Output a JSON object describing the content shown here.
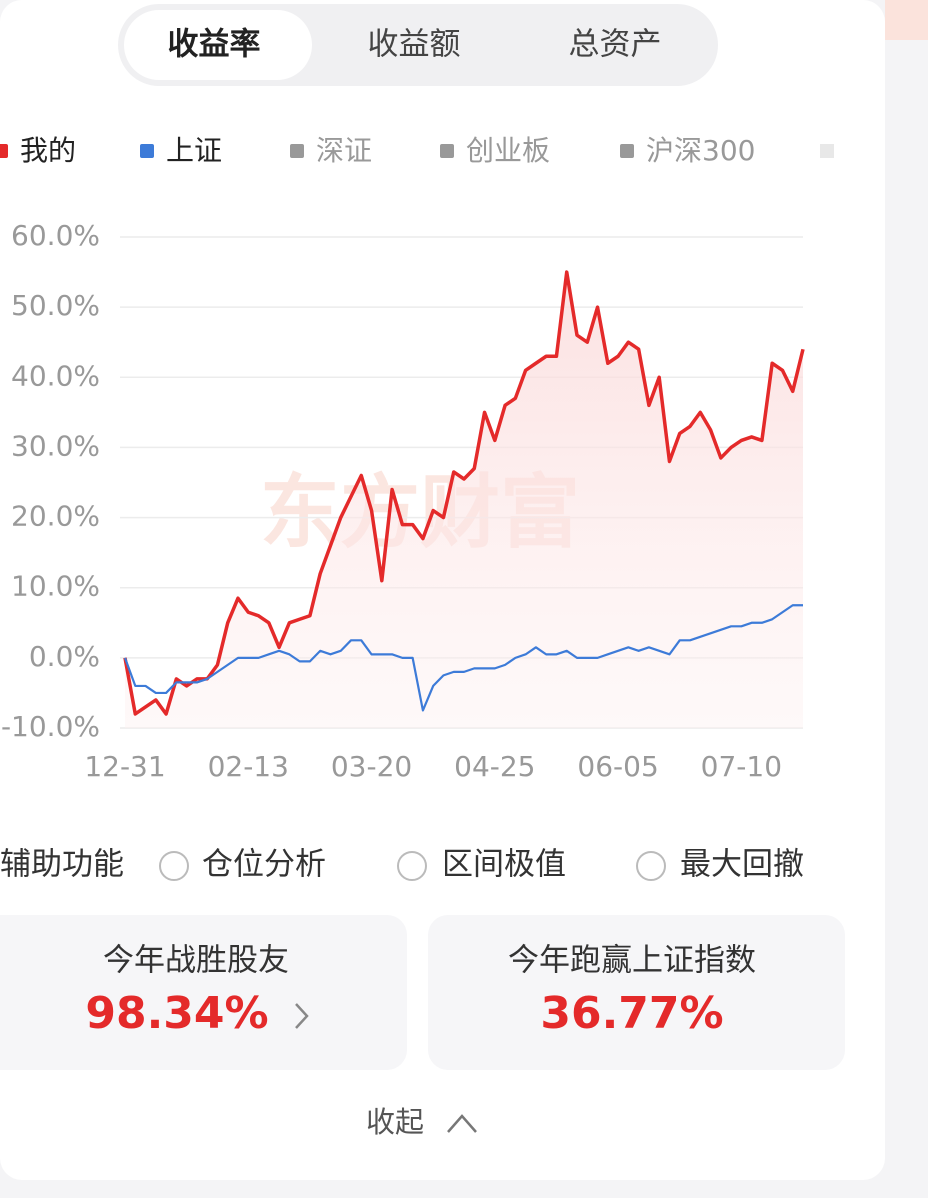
{
  "tabs": [
    "收益率",
    "收益额",
    "总资产"
  ],
  "legend_extra": [
    "深证",
    "创业板",
    "沪深300"
  ],
  "chart_data": {
    "type": "line",
    "watermark": "东方财富",
    "categories": [
      "12-31",
      null,
      null,
      null,
      null,
      null,
      null,
      null,
      null,
      null,
      null,
      null,
      "02-13",
      null,
      null,
      null,
      null,
      null,
      null,
      null,
      null,
      null,
      null,
      null,
      "03-20",
      null,
      null,
      null,
      null,
      null,
      null,
      null,
      null,
      null,
      null,
      null,
      "04-25",
      null,
      null,
      null,
      null,
      null,
      null,
      null,
      null,
      null,
      null,
      null,
      "06-05",
      null,
      null,
      null,
      null,
      null,
      null,
      null,
      null,
      null,
      null,
      null,
      "07-10",
      null,
      null,
      null,
      null,
      null,
      null
    ],
    "series": [
      {
        "name": "我的",
        "color": "#e42a2a",
        "values": [
          0,
          -8,
          -7,
          -6,
          -8,
          -3,
          -4,
          -3,
          -3,
          -1,
          5,
          8.5,
          6.5,
          6,
          5,
          1.5,
          5,
          5.5,
          6,
          12,
          16,
          20,
          23,
          26,
          21,
          11,
          24,
          19,
          19,
          17,
          21,
          20,
          26.5,
          25.5,
          27,
          35,
          31,
          36,
          37,
          41,
          42,
          43,
          43,
          55,
          46,
          45,
          50,
          42,
          43,
          45,
          44,
          36,
          40,
          28,
          32,
          33,
          35,
          32.5,
          28.5,
          30,
          31,
          31.5,
          31,
          42,
          41,
          38,
          44
        ]
      },
      {
        "name": "上证",
        "color": "#3d7bd8",
        "values": [
          0,
          -4,
          -4,
          -5,
          -5,
          -3.5,
          -3.5,
          -3.5,
          -3,
          -2,
          -1,
          0,
          0,
          0,
          0.5,
          1,
          0.5,
          -0.5,
          -0.5,
          1,
          0.5,
          1,
          2.5,
          2.5,
          0.5,
          0.5,
          0.5,
          0,
          0,
          -7.5,
          -4,
          -2.5,
          -2,
          -2,
          -1.5,
          -1.5,
          -1.5,
          -1,
          0,
          0.5,
          1.5,
          0.5,
          0.5,
          1,
          0,
          0,
          0,
          0.5,
          1,
          1.5,
          1,
          1.5,
          1,
          0.5,
          2.5,
          2.5,
          3,
          3.5,
          4,
          4.5,
          4.5,
          5,
          5,
          5.5,
          6.5,
          7.5,
          7.5
        ]
      }
    ],
    "ylim": [
      -10,
      60
    ],
    "yticks": [
      {
        "value": -10,
        "label": "-10.0%"
      },
      {
        "value": 0,
        "label": "0.0%"
      },
      {
        "value": 10,
        "label": "10.0%"
      },
      {
        "value": 20,
        "label": "20.0%"
      },
      {
        "value": 30,
        "label": "30.0%"
      },
      {
        "value": 40,
        "label": "40.0%"
      },
      {
        "value": 50,
        "label": "50.0%"
      },
      {
        "value": 60,
        "label": "60.0%"
      }
    ],
    "grid": true
  },
  "aux": {
    "title": "辅助功能",
    "options": [
      "仓位分析",
      "区间极值",
      "最大回撤"
    ]
  },
  "stats": [
    {
      "label": "今年战胜股友",
      "value": "98.34%"
    },
    {
      "label": "今年跑赢上证指数",
      "value": "36.77%"
    }
  ],
  "collapse": "收起"
}
